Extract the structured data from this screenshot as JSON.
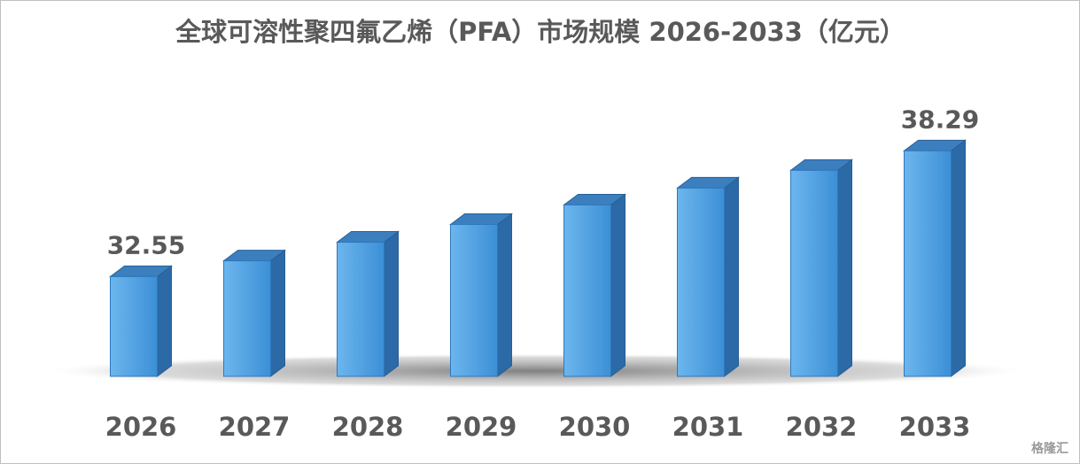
{
  "chart_data": {
    "type": "bar3d",
    "title": "全球可溶性聚四氟乙烯（PFA）市场规模 2026-2033（亿元）",
    "categories": [
      "2026",
      "2027",
      "2028",
      "2029",
      "2030",
      "2031",
      "2032",
      "2033"
    ],
    "values": [
      32.55,
      33.27,
      34.12,
      34.93,
      35.82,
      36.59,
      37.4,
      38.29
    ],
    "value_labels": [
      "32.55",
      null,
      null,
      null,
      null,
      null,
      null,
      "38.29"
    ],
    "color": "#4fa3e6",
    "ylim": [
      28,
      40
    ],
    "watermark": "格隆汇"
  }
}
